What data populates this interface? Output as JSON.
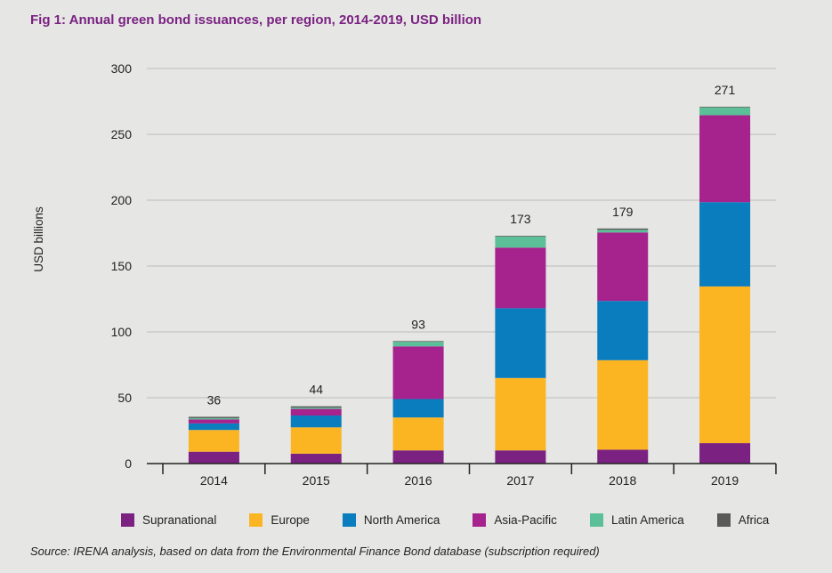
{
  "title": "Fig 1: Annual green bond issuances, per region, 2014-2019, USD billion",
  "source": "Source: IRENA analysis, based on data from the Environmental Finance Bond database (subscription required)",
  "chart_data": {
    "type": "bar",
    "stacked": true,
    "title": "Fig 1: Annual green bond issuances, per region, 2014-2019, USD billion",
    "xlabel": "",
    "ylabel": "USD billions",
    "ylim": [
      0,
      300
    ],
    "yticks": [
      0,
      50,
      100,
      150,
      200,
      250,
      300
    ],
    "grid": true,
    "legend_position": "bottom",
    "categories": [
      "2014",
      "2015",
      "2016",
      "2017",
      "2018",
      "2019"
    ],
    "totals": [
      "36",
      "44",
      "93",
      "173",
      "179",
      "271"
    ],
    "series": [
      {
        "name": "Supranational",
        "color": "#7a2182",
        "values": [
          9,
          7.5,
          10,
          10,
          10.5,
          15.5
        ]
      },
      {
        "name": "Europe",
        "color": "#fbb523",
        "values": [
          16.5,
          20,
          25,
          55,
          68,
          119
        ]
      },
      {
        "name": "North America",
        "color": "#0a7dbe",
        "values": [
          5,
          9,
          14,
          53,
          45,
          64
        ]
      },
      {
        "name": "Asia-Pacific",
        "color": "#a6228c",
        "values": [
          3,
          5,
          40,
          46,
          52,
          66
        ]
      },
      {
        "name": "Latin America",
        "color": "#5bbf97",
        "values": [
          1,
          1,
          3.5,
          8.5,
          2,
          6
        ]
      },
      {
        "name": "Africa",
        "color": "#5a5a5a",
        "values": [
          1,
          1,
          0.5,
          0.5,
          1,
          0.5
        ]
      }
    ]
  }
}
